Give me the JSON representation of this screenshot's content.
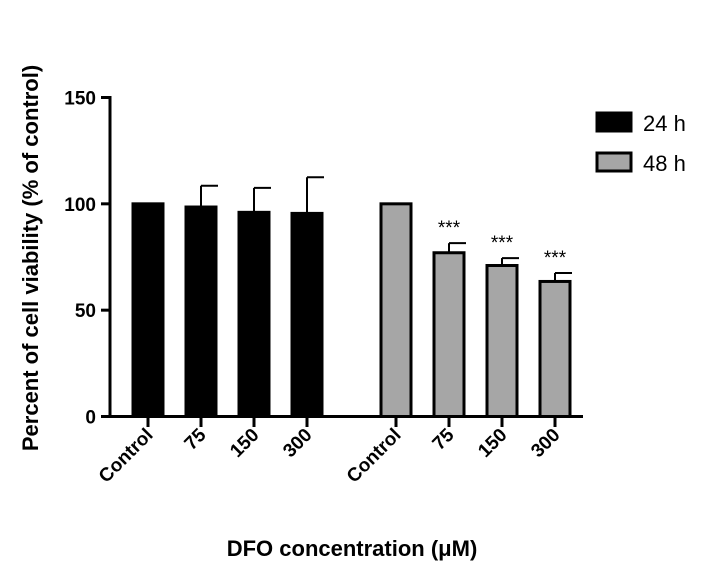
{
  "chart_data": {
    "type": "bar",
    "title": "",
    "xlabel": "DFO concentration (μM)",
    "ylabel": "Percent of cell viability (% of control)",
    "ylim": [
      0,
      150
    ],
    "yticks": [
      0,
      50,
      100,
      150
    ],
    "grid": false,
    "legend_position": "top-right",
    "categories": [
      "Control",
      "75",
      "150",
      "300"
    ],
    "series": [
      {
        "name": "24 h",
        "color": "#000000",
        "values": [
          100,
          98.5,
          96,
          95.5
        ],
        "errors": [
          0,
          10,
          11.5,
          17
        ],
        "significance": [
          "",
          "",
          "",
          ""
        ]
      },
      {
        "name": "48 h",
        "color": "#a6a6a6",
        "values": [
          100,
          77,
          71,
          63.5
        ],
        "errors": [
          0,
          4.5,
          3.5,
          4
        ],
        "significance": [
          "",
          "***",
          "***",
          "***"
        ]
      }
    ]
  }
}
